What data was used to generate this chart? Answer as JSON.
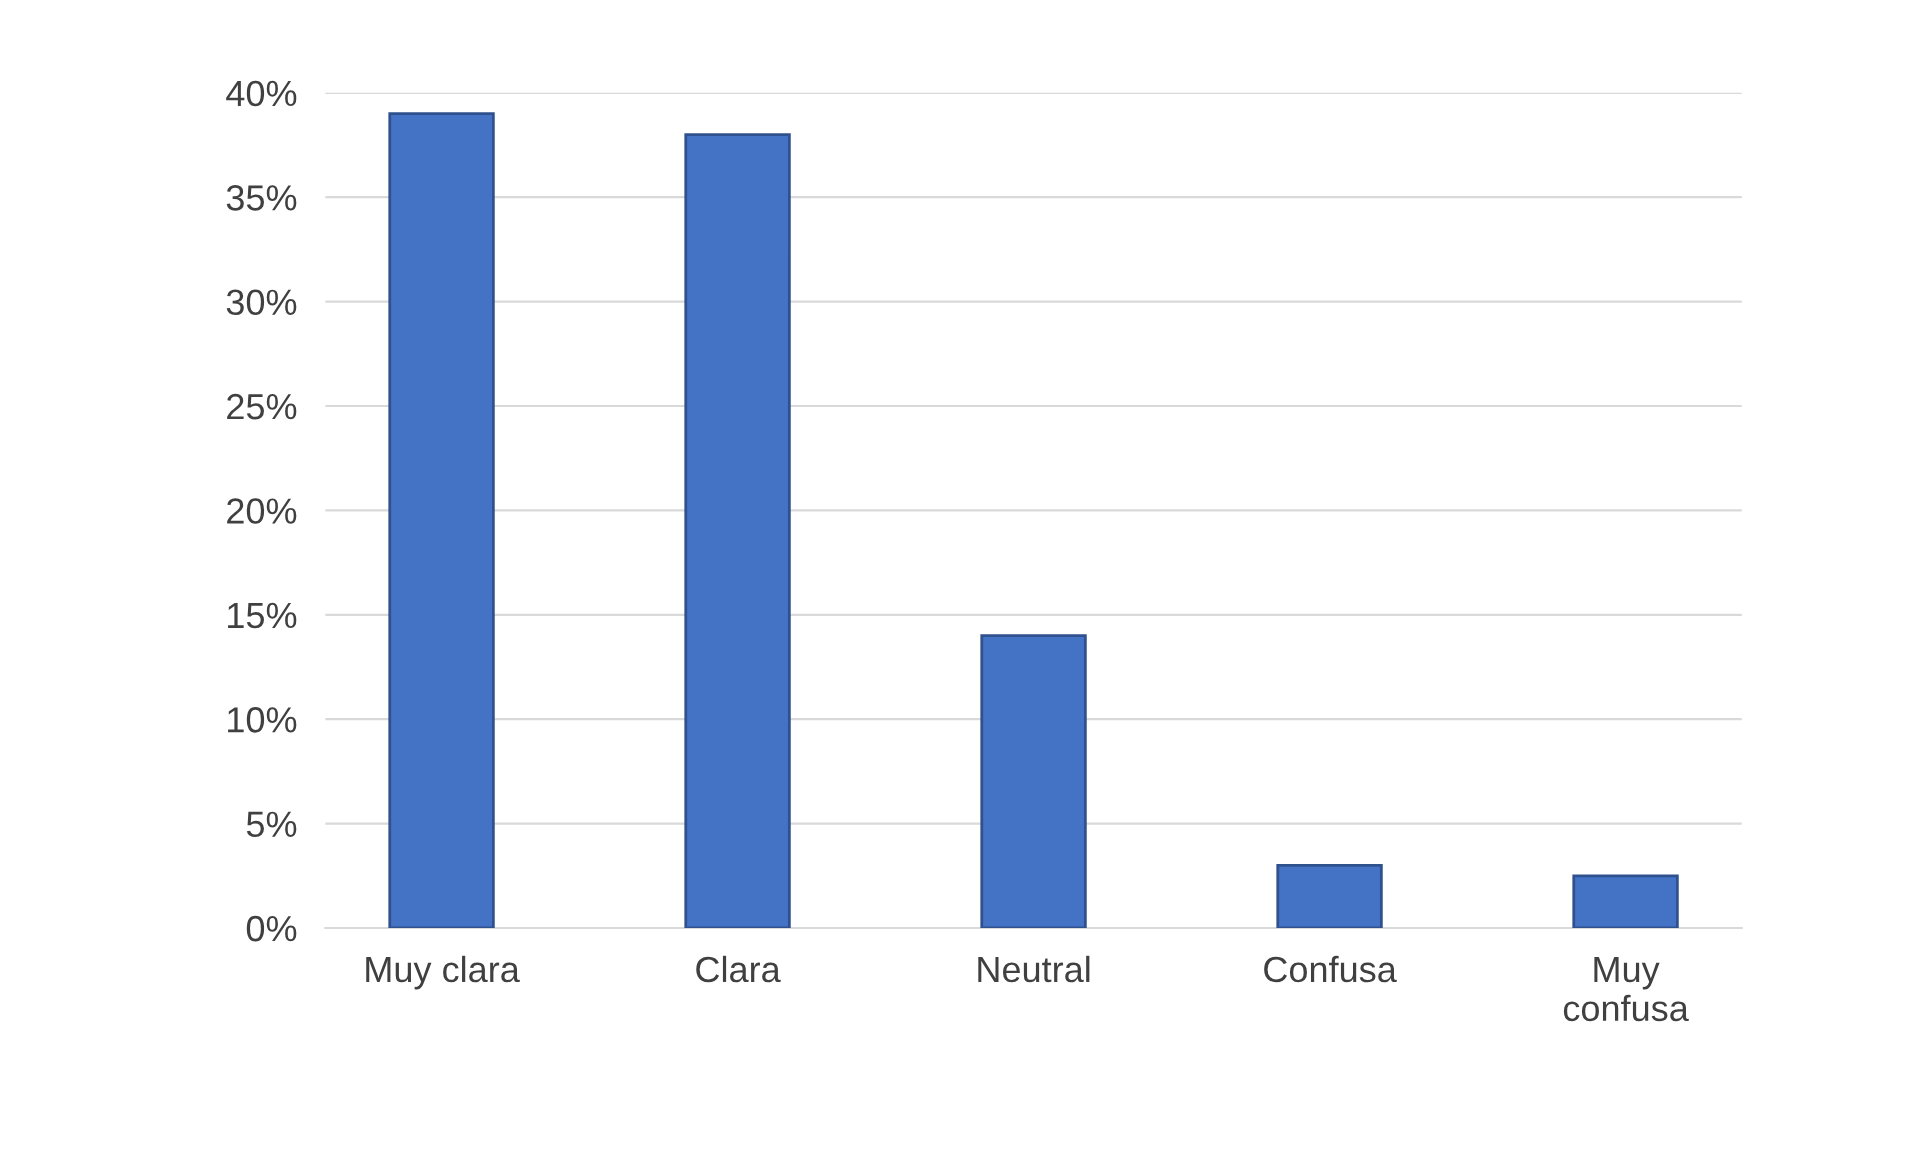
{
  "chart_data": {
    "type": "bar",
    "categories": [
      "Muy clara",
      "Clara",
      "Neutral",
      "Confusa",
      "Muy\nconfusa"
    ],
    "values": [
      39,
      38,
      14,
      3,
      2.5
    ],
    "color": "#4472c4",
    "ylim": [
      0,
      40
    ],
    "yticks": [
      {
        "value": 0,
        "label": "0%"
      },
      {
        "value": 5,
        "label": "5%"
      },
      {
        "value": 10,
        "label": "10%"
      },
      {
        "value": 15,
        "label": "15%"
      },
      {
        "value": 20,
        "label": "20%"
      },
      {
        "value": 25,
        "label": "25%"
      },
      {
        "value": 30,
        "label": "30%"
      },
      {
        "value": 35,
        "label": "35%"
      },
      {
        "value": 40,
        "label": "40%"
      }
    ],
    "grid": "y"
  }
}
